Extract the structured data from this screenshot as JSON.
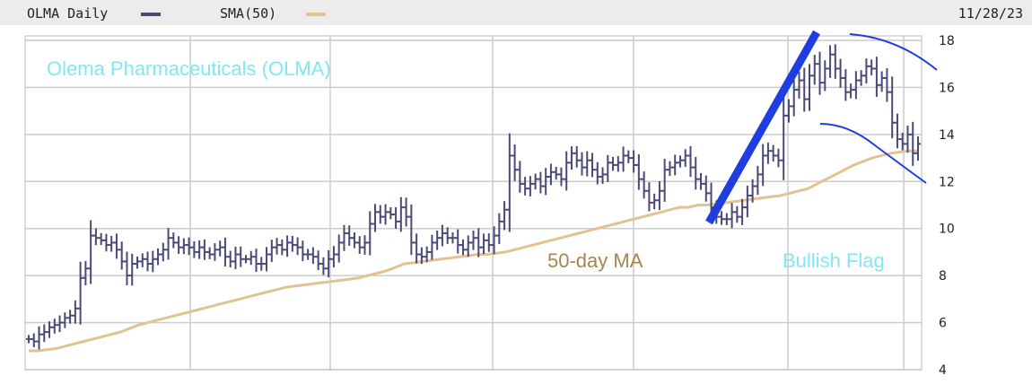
{
  "header": {
    "series_label": "OLMA Daily",
    "sma_label": "SMA(50)",
    "date": "11/28/23"
  },
  "colors": {
    "price": "#4a4a78",
    "sma": "#e2c38f",
    "grid": "#cccccc",
    "header_bg": "#ececec",
    "title_annotation": "#7fe8f3",
    "ma_annotation": "#a5854f",
    "trendline": "#1f3de0",
    "flag_lines": "#1f3de0"
  },
  "chart_data": {
    "type": "line",
    "title": "",
    "xlabel": "",
    "ylabel": "",
    "ylim": [
      4,
      18
    ],
    "yticks": [
      4,
      6,
      8,
      10,
      12,
      14,
      16,
      18
    ],
    "grid": true,
    "series": [
      {
        "name": "OLMA Daily",
        "style": "ohlc-bars",
        "values": [
          5.3,
          5.2,
          5.5,
          5.6,
          5.8,
          5.9,
          6.0,
          6.2,
          6.3,
          6.6,
          7.9,
          8.3,
          9.7,
          9.6,
          9.5,
          9.3,
          9.4,
          9.1,
          8.6,
          8.0,
          8.5,
          8.6,
          8.7,
          8.5,
          8.7,
          8.9,
          9.1,
          9.6,
          9.4,
          9.2,
          9.3,
          9.2,
          9.0,
          9.2,
          9.0,
          8.9,
          9.1,
          9.2,
          8.8,
          8.6,
          8.9,
          8.7,
          8.7,
          8.8,
          8.5,
          8.5,
          8.9,
          9.2,
          9.3,
          9.1,
          9.4,
          9.3,
          9.2,
          8.9,
          8.9,
          8.8,
          8.5,
          8.3,
          8.7,
          8.9,
          9.4,
          9.8,
          9.6,
          9.4,
          9.2,
          9.4,
          10.2,
          10.7,
          10.5,
          10.7,
          10.6,
          10.3,
          10.9,
          10.5,
          9.4,
          8.9,
          8.8,
          9.0,
          9.4,
          9.6,
          9.8,
          9.6,
          9.6,
          9.3,
          9.1,
          9.4,
          9.6,
          9.2,
          9.5,
          9.3,
          9.7,
          10.3,
          10.8,
          13.1,
          12.5,
          11.9,
          11.7,
          11.9,
          12.1,
          11.8,
          12.2,
          12.4,
          12.3,
          12.1,
          12.8,
          13.2,
          12.9,
          12.6,
          12.9,
          12.5,
          12.2,
          12.3,
          12.8,
          12.7,
          12.8,
          13.1,
          13.0,
          12.7,
          12.1,
          11.6,
          11.1,
          11.2,
          11.6,
          12.5,
          12.6,
          12.8,
          12.9,
          13.1,
          12.6,
          12.1,
          11.9,
          11.5,
          10.9,
          10.5,
          10.4,
          10.4,
          10.7,
          10.5,
          10.9,
          11.4,
          11.8,
          12.3,
          13.1,
          13.3,
          13.1,
          12.9,
          14.8,
          15.2,
          15.9,
          16.3,
          15.5,
          16.5,
          17.0,
          16.2,
          16.8,
          17.4,
          16.8,
          16.4,
          15.8,
          15.9,
          16.3,
          16.5,
          16.9,
          16.8,
          16.1,
          16.4,
          15.8,
          14.5,
          13.8,
          13.6,
          14.0,
          13.2,
          13.6
        ]
      },
      {
        "name": "SMA(50)",
        "style": "line",
        "values": [
          4.8,
          4.8,
          4.85,
          4.9,
          5.0,
          5.1,
          5.2,
          5.3,
          5.4,
          5.5,
          5.6,
          5.75,
          5.9,
          6.0,
          6.1,
          6.2,
          6.3,
          6.4,
          6.5,
          6.6,
          6.7,
          6.8,
          6.9,
          7.0,
          7.1,
          7.2,
          7.3,
          7.4,
          7.5,
          7.55,
          7.6,
          7.65,
          7.7,
          7.75,
          7.8,
          7.85,
          7.9,
          8.0,
          8.1,
          8.2,
          8.35,
          8.5,
          8.55,
          8.6,
          8.65,
          8.7,
          8.75,
          8.8,
          8.85,
          8.9,
          8.9,
          8.95,
          9.0,
          9.1,
          9.2,
          9.3,
          9.4,
          9.5,
          9.6,
          9.7,
          9.8,
          9.9,
          10.0,
          10.1,
          10.2,
          10.3,
          10.4,
          10.5,
          10.6,
          10.7,
          10.8,
          10.9,
          10.9,
          11.0,
          11.0,
          11.05,
          11.1,
          11.15,
          11.2,
          11.25,
          11.3,
          11.35,
          11.4,
          11.5,
          11.6,
          11.7,
          11.9,
          12.1,
          12.3,
          12.5,
          12.7,
          12.85,
          13.0,
          13.1,
          13.2,
          13.25,
          13.3,
          13.3
        ]
      }
    ],
    "annotations": [
      {
        "text": "Olema Pharmaceuticals (OLMA)"
      },
      {
        "text": "50-day MA"
      },
      {
        "text": "Bullish Flag"
      }
    ]
  }
}
